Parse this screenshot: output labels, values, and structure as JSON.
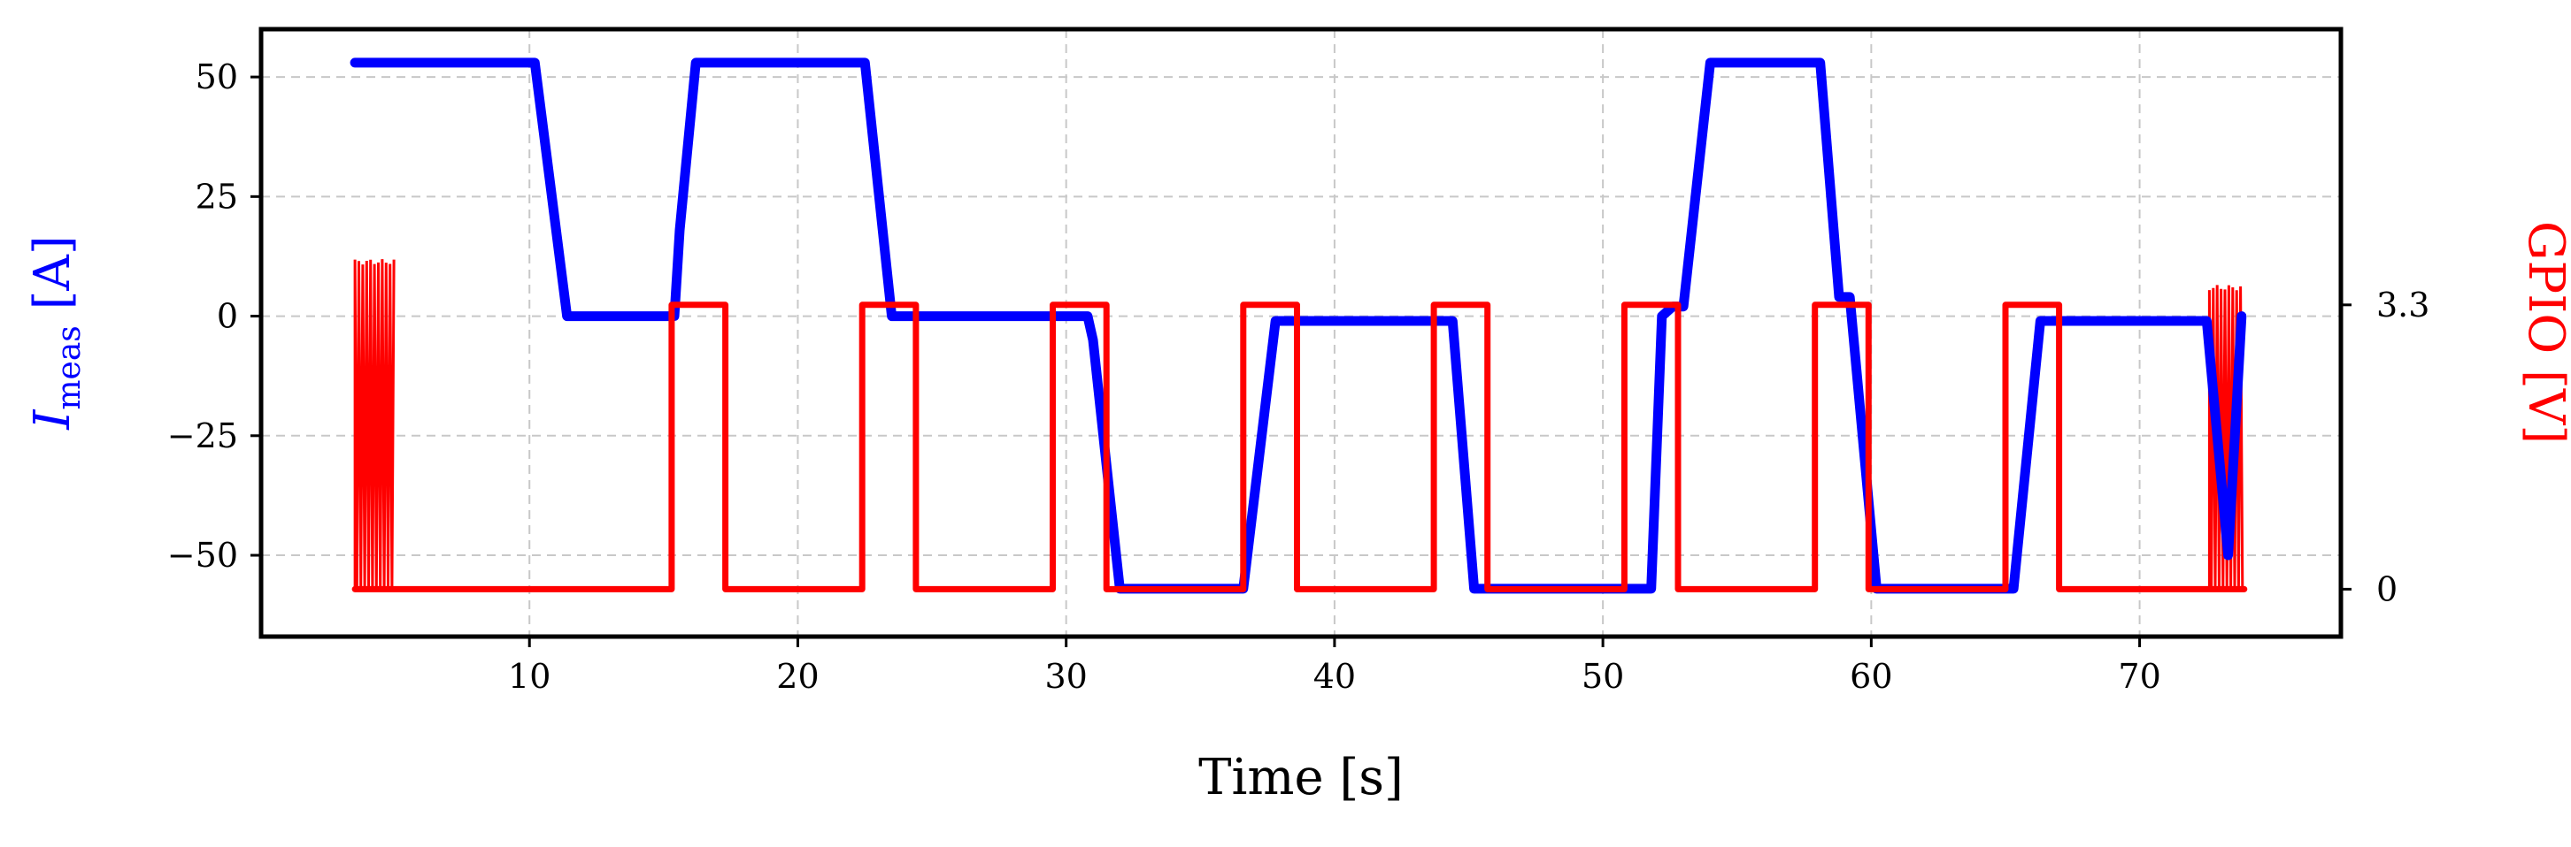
{
  "chart_data": {
    "type": "line",
    "xlabel": "Time [s]",
    "ylabel_left": "I_meas [A]",
    "ylabel_left_main": "I",
    "ylabel_left_sub": "meas",
    "ylabel_left_unit": " [A]",
    "ylabel_right": "GPIO [V]",
    "xlim": [
      0,
      77.5
    ],
    "ylim_left": [
      -67,
      60
    ],
    "ylim_right": [
      -0.55,
      6.5
    ],
    "grid": true,
    "x_ticks": [
      10,
      20,
      30,
      40,
      50,
      60,
      70
    ],
    "x_tick_labels": [
      "10",
      "20",
      "30",
      "40",
      "50",
      "60",
      "70"
    ],
    "y_left_ticks": [
      50,
      25,
      0,
      -25,
      -50
    ],
    "y_left_tick_labels": [
      "50",
      "25",
      "0",
      "−25",
      "−50"
    ],
    "y_right_ticks": [
      3.3,
      0
    ],
    "y_right_tick_labels": [
      "3.3",
      "0"
    ],
    "series": [
      {
        "name": "I_meas",
        "axis": "left",
        "color": "#0000ff",
        "x": [
          3.5,
          10.2,
          11.4,
          15.4,
          15.6,
          16.2,
          22.5,
          23.5,
          30.8,
          31.0,
          32.0,
          36.6,
          37.8,
          44.4,
          45.2,
          51.8,
          52.2,
          52.6,
          53.0,
          54.0,
          58.1,
          58.8,
          59.2,
          60.2,
          65.3,
          66.3,
          72.5,
          73.3,
          73.8
        ],
        "y": [
          53,
          53,
          0,
          0,
          18,
          53,
          53,
          0,
          0,
          -5,
          -57,
          -57,
          -1,
          -1,
          -57,
          -57,
          0,
          2,
          2,
          53,
          53,
          4,
          4,
          -57,
          -57,
          -1,
          -1,
          -50,
          0
        ]
      },
      {
        "name": "GPIO",
        "axis": "right",
        "color": "#ff0000",
        "x": [
          3.5,
          15.3,
          15.3,
          17.3,
          17.3,
          22.4,
          22.4,
          24.4,
          24.4,
          29.5,
          29.5,
          31.5,
          31.5,
          36.6,
          36.6,
          38.6,
          38.6,
          43.7,
          43.7,
          45.7,
          45.7,
          50.8,
          50.8,
          52.8,
          52.8,
          57.9,
          57.9,
          59.9,
          59.9,
          65.0,
          65.0,
          67.0,
          67.0,
          72.6,
          73.9
        ],
        "y": [
          0,
          0,
          3.3,
          3.3,
          0,
          0,
          3.3,
          3.3,
          0,
          0,
          3.3,
          3.3,
          0,
          0,
          3.3,
          3.3,
          0,
          0,
          3.3,
          3.3,
          0,
          0,
          3.3,
          3.3,
          0,
          0,
          3.3,
          3.3,
          0,
          0,
          3.3,
          3.3,
          0,
          0,
          0
        ]
      }
    ],
    "bursts": [
      {
        "axis": "right",
        "color": "#ff0000",
        "x_start": 3.5,
        "x_end": 5.0,
        "y_low": 0,
        "y_high": 3.8
      },
      {
        "axis": "right",
        "color": "#ff0000",
        "x_start": 72.6,
        "x_end": 73.9,
        "y_low": 0,
        "y_high": 3.5
      }
    ]
  }
}
